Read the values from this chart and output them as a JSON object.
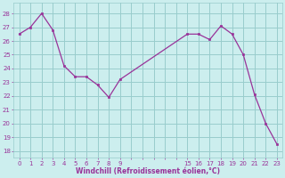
{
  "x": [
    0,
    1,
    2,
    3,
    4,
    5,
    6,
    7,
    8,
    9,
    15,
    16,
    17,
    18,
    19,
    20,
    21,
    22,
    23
  ],
  "y": [
    26.5,
    27.0,
    28.0,
    26.8,
    24.2,
    23.4,
    23.4,
    22.8,
    21.9,
    23.2,
    26.5,
    26.5,
    26.1,
    27.1,
    26.5,
    25.0,
    22.1,
    20.0,
    18.5
  ],
  "line_color": "#993399",
  "marker_color": "#993399",
  "bg_color": "#cceeee",
  "grid_color": "#99cccc",
  "xlabel": "Windchill (Refroidissement éolien,°C)",
  "xtick_positions": [
    0,
    1,
    2,
    3,
    4,
    5,
    6,
    7,
    8,
    9,
    10,
    11,
    12,
    13,
    14,
    15,
    16,
    17,
    18,
    19,
    20,
    21,
    22,
    23
  ],
  "xtick_labels": [
    "0",
    "1",
    "2",
    "3",
    "4",
    "5",
    "6",
    "7",
    "8",
    "9",
    "",
    "",
    "",
    "",
    "",
    "15",
    "16",
    "17",
    "18",
    "19",
    "20",
    "21",
    "22",
    "23"
  ],
  "yticks": [
    18,
    19,
    20,
    21,
    22,
    23,
    24,
    25,
    26,
    27,
    28
  ],
  "ylim": [
    17.5,
    28.8
  ],
  "xlim": [
    -0.5,
    23.5
  ]
}
